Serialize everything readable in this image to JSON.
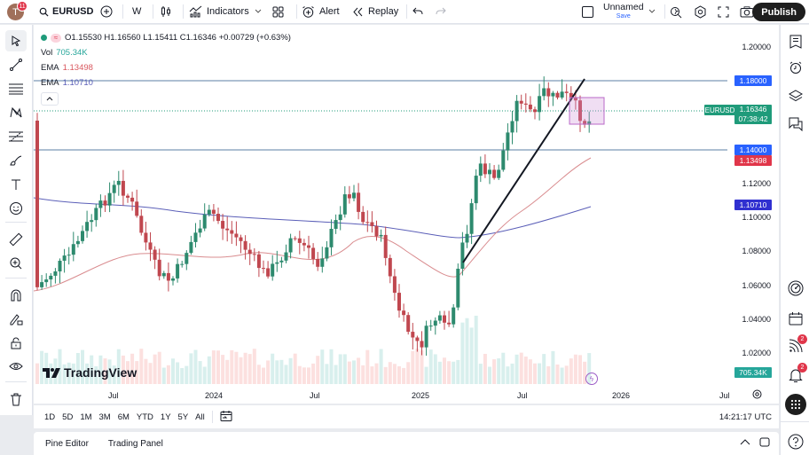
{
  "header": {
    "avatar_letter": "T",
    "avatar_badge": "11",
    "symbol": "EURUSD",
    "interval": "W",
    "indicators_label": "Indicators",
    "alert_label": "Alert",
    "replay_label": "Replay",
    "layout_name": "Unnamed",
    "layout_save": "Save",
    "publish_label": "Publish"
  },
  "legend": {
    "ohlc": "O1.15530 H1.16560 L1.15411 C1.16346 +0.00729 (+0.63%)",
    "vol_label": "Vol",
    "vol_value": "705.34K",
    "ema1_label": "EMA",
    "ema1_value": "1.13498",
    "ema2_label": "EMA",
    "ema2_value": "1.10710"
  },
  "price_scale": {
    "ticks": [
      "1.20000",
      "1.12000",
      "1.10000",
      "1.08000",
      "1.06000",
      "1.04000",
      "1.02000"
    ],
    "tag_1180": "1.18000",
    "tag_1140": "1.14000",
    "tag_ema1": "1.13498",
    "tag_ema2": "1.10710",
    "symbol_tag": "EURUSD",
    "last_price": "1.16346",
    "countdown": "07:38:42",
    "volume_tag": "705.34K"
  },
  "time_axis": {
    "labels": [
      "Jul",
      "2024",
      "Jul",
      "2025",
      "Jul",
      "2026",
      "Jul"
    ]
  },
  "range_bar": {
    "ranges": [
      "1D",
      "5D",
      "1M",
      "3M",
      "6M",
      "YTD",
      "1Y",
      "5Y",
      "All"
    ],
    "clock": "14:21:17 UTC"
  },
  "bottom_panel": {
    "tabs": [
      "Pine Editor",
      "Trading Panel"
    ]
  },
  "branding": {
    "logo_text": "TradingView"
  },
  "right_toolbar": {
    "badge_ideas": "2",
    "badge_alerts": "2"
  },
  "colors": {
    "up": "#2d8a6e",
    "down": "#c0474f",
    "ema1": "#d98c8f",
    "ema2": "#5b5fb8",
    "hline": "#5b7fa6",
    "blue_tag": "#2962ff",
    "ema2_tag": "#3030d0",
    "red_tag": "#e0364a",
    "green_tag": "#1f9b7a"
  }
}
